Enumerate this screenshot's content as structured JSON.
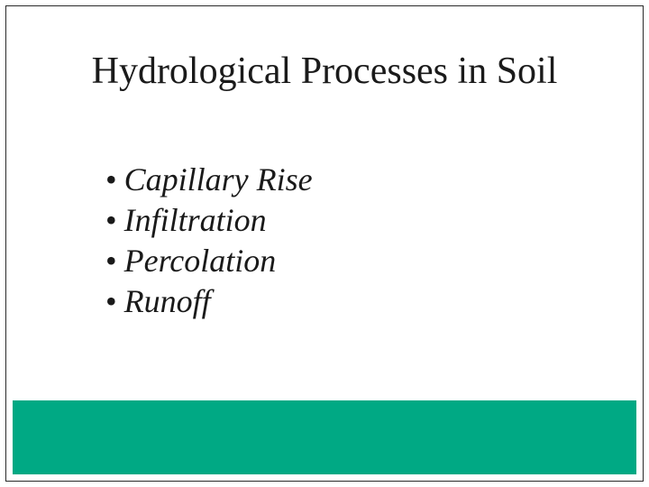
{
  "slide": {
    "title": "Hydrological Processes in Soil",
    "title_fontsize": 42,
    "title_color": "#1a1a1a",
    "bullets": [
      "Capillary Rise",
      "Infiltration",
      "Percolation",
      "Runoff"
    ],
    "bullet_fontsize": 36,
    "bullet_color": "#1a1a1a",
    "bullet_font_style": "italic",
    "background_color": "#ffffff",
    "border_color": "#2a2a2a",
    "footer_bar_color": "#00a984",
    "footer_bar_height": 82
  }
}
